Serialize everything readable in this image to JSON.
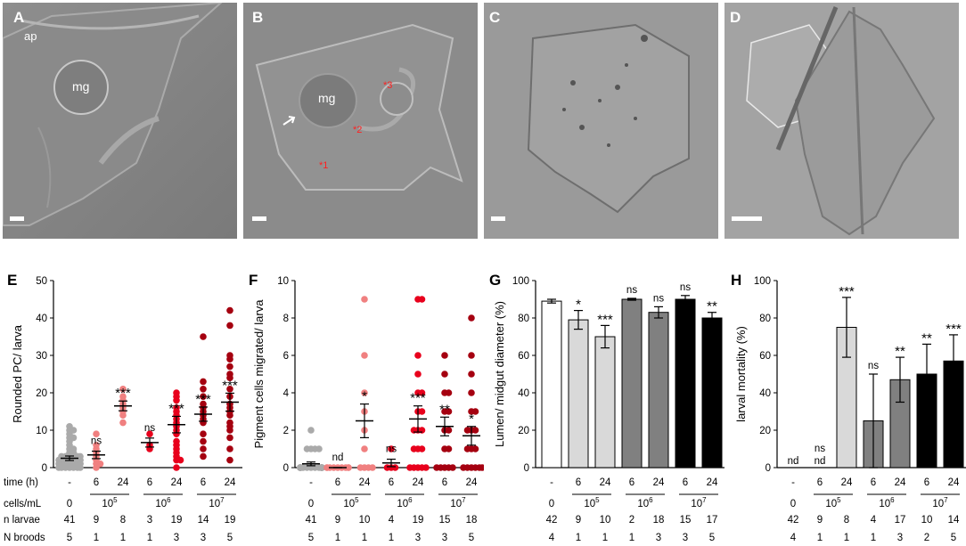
{
  "micrographs": [
    {
      "letter": "A",
      "labels": [
        {
          "text": "ap"
        },
        {
          "text": "mg"
        }
      ]
    },
    {
      "letter": "B",
      "labels": [
        {
          "text": "mg"
        }
      ],
      "markers": [
        "*1",
        "*2",
        "*3"
      ]
    },
    {
      "letter": "C"
    },
    {
      "letter": "D"
    }
  ],
  "row_labels": {
    "time": "time (h)",
    "conc": "cells/mL",
    "nlarvae": "n larvae",
    "nbroods": "N broods"
  },
  "chart_data": [
    {
      "panel": "E",
      "type": "scatter",
      "ylabel": "Rounded PC/ larva",
      "ylim": [
        0,
        50
      ],
      "yticks": [
        0,
        10,
        20,
        30,
        40,
        50
      ],
      "groups": [
        "-",
        "6",
        "24",
        "6",
        "24",
        "6",
        "24"
      ],
      "concentrations": [
        "0",
        "10^5",
        "10^6",
        "10^7"
      ],
      "means": [
        2.5,
        3.4,
        16.5,
        6.7,
        11.5,
        14.3,
        17.5
      ],
      "sem": [
        0.6,
        1.0,
        1.3,
        1.2,
        2.2,
        1.9,
        2.4
      ],
      "significance": [
        "",
        "ns",
        "***",
        "ns",
        "***",
        "***",
        "***"
      ],
      "colors": [
        "#aaaaaa",
        "#f08080",
        "#f08080",
        "#e8001c",
        "#e8001c",
        "#a50010",
        "#a50010"
      ],
      "points": [
        [
          0,
          0,
          0,
          0,
          1,
          1,
          1,
          1,
          2,
          2,
          2,
          2,
          2,
          3,
          3,
          3,
          3,
          4,
          4,
          5,
          5,
          6,
          7,
          8,
          8,
          9,
          10,
          10,
          11,
          0,
          1,
          2,
          3,
          2,
          1,
          0,
          1,
          2,
          0,
          1,
          3
        ],
        [
          0,
          1,
          2,
          3,
          4,
          5,
          6,
          9,
          1
        ],
        [
          12,
          14,
          15,
          16,
          17,
          18,
          19,
          21
        ],
        [
          5,
          6,
          9
        ],
        [
          0,
          2,
          3,
          5,
          7,
          9,
          10,
          12,
          14,
          15,
          16,
          18,
          19,
          20,
          2,
          6,
          4,
          13,
          11
        ],
        [
          3,
          5,
          7,
          9,
          12,
          14,
          15,
          16,
          17,
          19,
          21,
          23,
          35,
          13
        ],
        [
          2,
          5,
          8,
          10,
          12,
          14,
          15,
          17,
          19,
          21,
          24,
          25,
          27,
          29,
          30,
          38,
          42,
          11,
          16
        ]
      ]
    },
    {
      "panel": "F",
      "type": "scatter",
      "ylabel": "Pigment cells migrated/ larva",
      "ylim": [
        0,
        10
      ],
      "yticks": [
        0,
        2,
        4,
        6,
        8,
        10
      ],
      "means": [
        0.2,
        0,
        2.5,
        0.25,
        2.6,
        2.2,
        1.7
      ],
      "sem": [
        0.1,
        0,
        0.9,
        0.2,
        0.7,
        0.5,
        0.5
      ],
      "significance": [
        "",
        "nd",
        "*",
        "ns",
        "***",
        "**",
        "*"
      ],
      "colors": [
        "#aaaaaa",
        "#f08080",
        "#f08080",
        "#e8001c",
        "#e8001c",
        "#a50010",
        "#a50010"
      ],
      "points": [
        [
          0,
          0,
          0,
          0,
          0,
          0,
          0,
          0,
          0,
          0,
          0,
          0,
          0,
          0,
          0,
          0,
          0,
          0,
          0,
          0,
          0,
          1,
          1,
          1,
          2,
          1,
          0,
          0,
          0,
          0,
          0,
          0,
          0,
          0,
          0,
          0,
          0,
          0,
          0,
          0,
          0
        ],
        [
          0,
          0,
          0,
          0,
          0,
          0,
          0,
          0,
          0
        ],
        [
          0,
          0,
          0,
          0,
          1,
          2,
          3,
          4,
          6,
          9
        ],
        [
          0,
          0,
          0,
          1
        ],
        [
          0,
          0,
          0,
          0,
          0,
          1,
          1,
          2,
          2,
          3,
          3,
          4,
          4,
          5,
          6,
          9,
          9,
          2,
          1
        ],
        [
          0,
          0,
          0,
          0,
          0,
          1,
          1,
          2,
          2,
          3,
          3,
          4,
          4,
          5,
          6
        ],
        [
          0,
          0,
          0,
          0,
          0,
          0,
          1,
          1,
          1,
          2,
          2,
          2,
          3,
          3,
          4,
          5,
          6,
          8
        ]
      ]
    },
    {
      "panel": "G",
      "type": "bar",
      "ylabel": "Lumen/ midgut diameter (%)",
      "ylim": [
        0,
        100
      ],
      "yticks": [
        0,
        20,
        40,
        60,
        80,
        100
      ],
      "values": [
        89,
        79,
        70,
        90,
        83,
        90,
        80
      ],
      "errors": [
        1,
        5,
        6,
        0.5,
        3,
        2,
        3
      ],
      "significance": [
        "",
        "*",
        "***",
        "ns",
        "ns",
        "ns",
        "**"
      ],
      "colors": [
        "#ffffff",
        "#d9d9d9",
        "#d9d9d9",
        "#808080",
        "#808080",
        "#000000",
        "#000000"
      ]
    },
    {
      "panel": "H",
      "type": "bar",
      "ylabel": "larval mortality (%)",
      "ylim": [
        0,
        100
      ],
      "yticks": [
        0,
        20,
        40,
        60,
        80,
        100
      ],
      "values": [
        0,
        0,
        75,
        25,
        47,
        50,
        57
      ],
      "errors_low": [
        0,
        0,
        16,
        25,
        12,
        16,
        14
      ],
      "errors_high": [
        0,
        0,
        16,
        25,
        12,
        16,
        14
      ],
      "significance": [
        "",
        "ns",
        "***",
        "ns",
        "**",
        "**",
        "***"
      ],
      "bottom_labels": [
        "nd",
        "nd",
        "",
        "",
        "",
        "",
        ""
      ],
      "colors": [
        "#ffffff",
        "#ffffff",
        "#d9d9d9",
        "#808080",
        "#808080",
        "#000000",
        "#000000"
      ]
    }
  ],
  "tables": [
    {
      "time": [
        "-",
        "6",
        "24",
        "6",
        "24",
        "6",
        "24"
      ],
      "conc": [
        "0",
        "10",
        "10",
        "10"
      ],
      "conc_exp": [
        "",
        "5",
        "6",
        "7"
      ],
      "nlarvae": [
        "41",
        "9",
        "8",
        "3",
        "19",
        "14",
        "19"
      ],
      "nbroods": [
        "5",
        "1",
        "1",
        "1",
        "3",
        "3",
        "5"
      ]
    },
    {
      "time": [
        "-",
        "6",
        "24",
        "6",
        "24",
        "6",
        "24"
      ],
      "conc": [
        "0",
        "10",
        "10",
        "10"
      ],
      "conc_exp": [
        "",
        "5",
        "6",
        "7"
      ],
      "nlarvae": [
        "41",
        "9",
        "10",
        "4",
        "19",
        "15",
        "18"
      ],
      "nbroods": [
        "5",
        "1",
        "1",
        "1",
        "3",
        "3",
        "5"
      ]
    },
    {
      "time": [
        "-",
        "6",
        "24",
        "6",
        "24",
        "6",
        "24"
      ],
      "conc": [
        "0",
        "10",
        "10",
        "10"
      ],
      "conc_exp": [
        "",
        "5",
        "6",
        "7"
      ],
      "nlarvae": [
        "42",
        "9",
        "10",
        "2",
        "18",
        "15",
        "17"
      ],
      "nbroods": [
        "4",
        "1",
        "1",
        "1",
        "3",
        "3",
        "5"
      ]
    },
    {
      "time": [
        "-",
        "6",
        "24",
        "6",
        "24",
        "6",
        "24"
      ],
      "conc": [
        "0",
        "10",
        "10",
        "10"
      ],
      "conc_exp": [
        "",
        "5",
        "6",
        "7"
      ],
      "nlarvae": [
        "42",
        "9",
        "8",
        "4",
        "17",
        "10",
        "14"
      ],
      "nbroods": [
        "4",
        "1",
        "1",
        "1",
        "3",
        "2",
        "5"
      ]
    }
  ]
}
